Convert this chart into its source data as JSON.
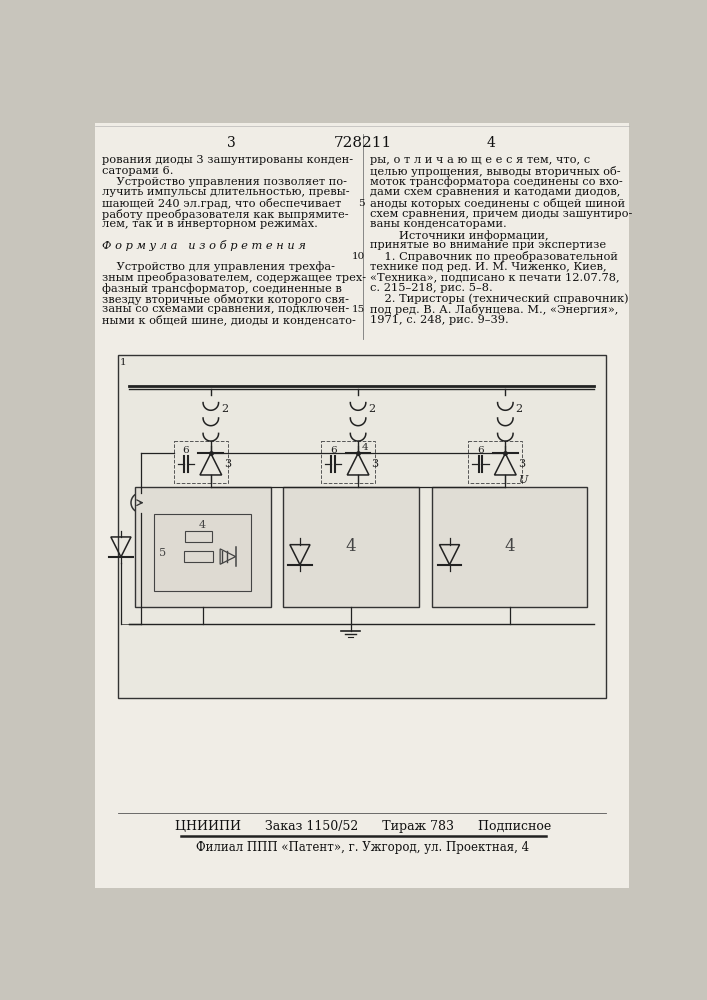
{
  "page_bg": "#f0ede6",
  "outer_bg": "#c8c5bc",
  "title_number": "728211",
  "page_num_left": "3",
  "page_num_right": "4",
  "left_col_text": [
    "рования диоды 3 зашунтированы конден-",
    "саторами 6.",
    "    Устройство управления позволяет по-",
    "лучить импульсы длительностью, превы-",
    "шающей 240 эл.град, что обеспечивает",
    "работу преобразователя как выпрямите-",
    "лем, так и в инверторном режимах.",
    "",
    "Ф о р м у л а   и з о б р е т е н и я",
    "",
    "    Устройство для управления трехфа-",
    "зным преобразователем, содержащее трех-",
    "фазный трансформатор, соединенные в",
    "звезду вторичные обмотки которого свя-",
    "заны со схемами сравнения, подключен-",
    "ными к общей шине, диоды и конденсато-"
  ],
  "right_col_text": [
    "ры, о т л и ч а ю щ е е с я тем, что, с",
    "целью упрощения, выводы вторичных об-",
    "моток трансформатора соединены со вхо-",
    "дами схем сравнения и катодами диодов,",
    "аноды которых соединены с общей шиной",
    "схем сравнения, причем диоды зашунтиро-",
    "ваны конденсаторами.",
    "        Источники информации,",
    "принятые во внимание при экспертизе",
    "    1. Справочник по преобразовательной",
    "технике под ред. И. М. Чиженко, Киев,",
    "«Техника», подписано к печати 12.07.78,",
    "с. 215–218, рис. 5–8.",
    "    2. Тиристоры (технический справочник)",
    "под ред. В. А. Лабунцева. М., «Энергия»,",
    "1971, с. 248, рис. 9–39."
  ],
  "line_numbers": [
    5,
    10,
    15
  ],
  "footer_main": "ЦНИИПИ      Заказ 1150/52      Тираж 783      Подписное",
  "footer_sub": "Филиал ППП «Патент», г. Ужгород, ул. Проектная, 4"
}
